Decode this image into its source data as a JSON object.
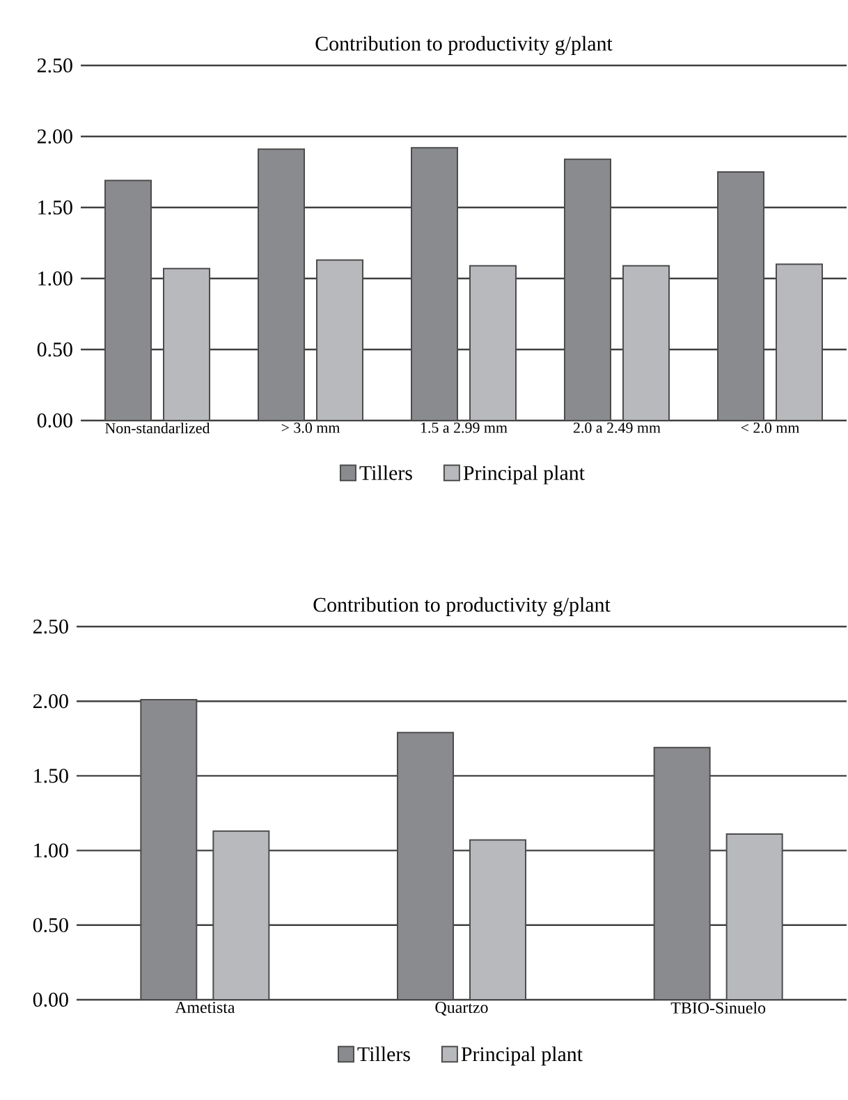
{
  "chart_data": [
    {
      "type": "bar",
      "title": "Contribution to productivity g/plant",
      "categories": [
        "Non-standarlized",
        "> 3.0 mm",
        "1.5 a 2.99 mm",
        "2.0 a 2.49 mm",
        "< 2.0 mm"
      ],
      "series": [
        {
          "name": "Tillers",
          "color": "#8a8b8f",
          "values": [
            1.69,
            1.91,
            1.92,
            1.84,
            1.75
          ]
        },
        {
          "name": "Principal plant",
          "color": "#b8b9bd",
          "values": [
            1.07,
            1.13,
            1.09,
            1.09,
            1.1
          ]
        }
      ],
      "ylim": [
        0,
        2.5
      ],
      "yticks": [
        {
          "value": 0,
          "label": "0.00"
        },
        {
          "value": 0.5,
          "label": "0.50"
        },
        {
          "value": 1,
          "label": "1.00"
        },
        {
          "value": 1.5,
          "label": "1.50"
        },
        {
          "value": 2,
          "label": "2.00"
        },
        {
          "value": 2.5,
          "label": "2.50"
        }
      ],
      "grid": "y",
      "legend": "bottom"
    },
    {
      "type": "bar",
      "title": "Contribution to productivity g/plant",
      "categories": [
        "Ametista",
        "Quartzo",
        "TBIO-Sinuelo"
      ],
      "series": [
        {
          "name": "Tillers",
          "color": "#8a8b8f",
          "values": [
            2.01,
            1.79,
            1.69
          ]
        },
        {
          "name": "Principal plant",
          "color": "#b8b9bd",
          "values": [
            1.13,
            1.07,
            1.11
          ]
        }
      ],
      "ylim": [
        0,
        2.5
      ],
      "yticks": [
        {
          "value": 0,
          "label": "0.00"
        },
        {
          "value": 0.5,
          "label": "0.50"
        },
        {
          "value": 1,
          "label": "1.00"
        },
        {
          "value": 1.5,
          "label": "1.50"
        },
        {
          "value": 2,
          "label": "2.00"
        },
        {
          "value": 2.5,
          "label": "2.50"
        }
      ],
      "grid": "y",
      "legend": "bottom"
    }
  ]
}
